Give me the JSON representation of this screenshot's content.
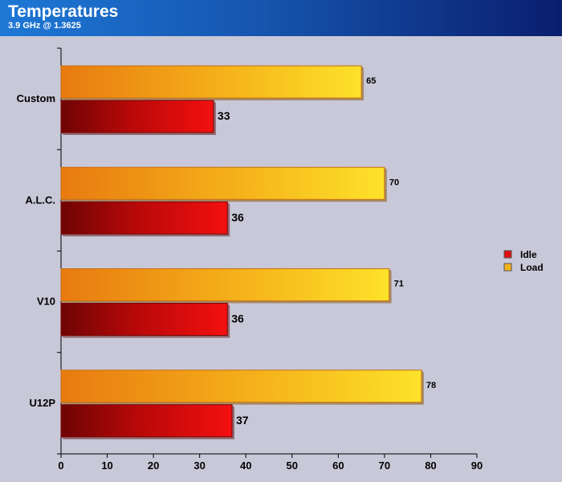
{
  "header": {
    "title": "Temperatures",
    "subtitle": "3.9 GHz @ 1.3625"
  },
  "chart_data": {
    "type": "bar",
    "orientation": "horizontal",
    "categories": [
      "Custom",
      "A.L.C.",
      "V10",
      "U12P"
    ],
    "series": [
      {
        "name": "Load",
        "values": [
          65,
          70,
          71,
          78
        ],
        "color": "#f5b21a"
      },
      {
        "name": "Idle",
        "values": [
          33,
          36,
          36,
          37
        ],
        "color": "#e01010"
      }
    ],
    "xlim": [
      0,
      90
    ],
    "xticks": [
      0,
      10,
      20,
      30,
      40,
      50,
      60,
      70,
      80,
      90
    ],
    "grid": false,
    "legend_position": "right"
  }
}
